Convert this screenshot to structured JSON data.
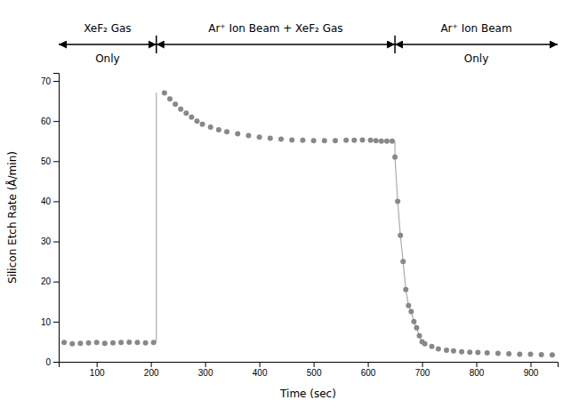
{
  "chart_data": {
    "type": "scatter",
    "xlabel": "Time (sec)",
    "ylabel": "Silicon Etch Rate (Å/min)",
    "xlim": [
      30,
      950
    ],
    "ylim": [
      0,
      72
    ],
    "xticks": [
      100,
      200,
      300,
      400,
      500,
      600,
      700,
      800,
      900
    ],
    "yticks": [
      0,
      10,
      20,
      30,
      40,
      50,
      60,
      70
    ],
    "grid": false,
    "series": [
      {
        "type": "scatter",
        "marker": "circle",
        "color": "#888888",
        "x": [
          40,
          55,
          70,
          85,
          100,
          115,
          130,
          145,
          160,
          175,
          190,
          205
        ],
        "values": [
          4.8,
          4.5,
          4.6,
          4.7,
          4.8,
          4.6,
          4.7,
          4.8,
          4.9,
          4.8,
          4.7,
          4.8
        ]
      },
      {
        "type": "line",
        "line_style": "solid",
        "color": "#aaaaaa",
        "x": [
          210,
          210
        ],
        "values": [
          4.8,
          67.0
        ]
      },
      {
        "type": "scatter",
        "marker": "circle",
        "color": "#888888",
        "x": [
          225,
          235,
          245,
          255,
          265,
          275,
          285,
          295,
          310,
          325,
          340,
          360,
          380,
          400,
          420,
          440,
          460,
          480,
          500,
          520,
          540,
          560,
          575,
          590,
          605,
          615,
          625,
          635,
          645
        ],
        "values": [
          67.0,
          65.5,
          64.2,
          63.0,
          62.0,
          61.0,
          60.0,
          59.2,
          58.5,
          57.8,
          57.3,
          56.8,
          56.4,
          56.0,
          55.7,
          55.5,
          55.3,
          55.2,
          55.1,
          55.1,
          55.1,
          55.2,
          55.2,
          55.3,
          55.2,
          55.1,
          55.0,
          55.0,
          55.0
        ]
      },
      {
        "type": "line",
        "line_style": "solid",
        "color": "#aaaaaa",
        "x": [
          650,
          650
        ],
        "values": [
          55.0,
          51.0
        ]
      },
      {
        "type": "line",
        "line_style": "solid",
        "color": "#aaaaaa",
        "x": [
          650,
          655,
          660,
          665,
          670,
          675,
          680,
          685,
          690,
          695,
          700
        ],
        "values": [
          51.0,
          40.0,
          31.5,
          25.0,
          18.0,
          14.0,
          12.5,
          10.0,
          8.5,
          6.5,
          5.0
        ]
      },
      {
        "type": "scatter",
        "marker": "circle",
        "color": "#888888",
        "x": [
          650,
          655,
          660,
          665,
          670,
          675,
          680,
          685,
          690,
          695,
          700
        ],
        "values": [
          51.0,
          40.0,
          31.5,
          25.0,
          18.0,
          14.0,
          12.5,
          10.0,
          8.5,
          6.5,
          5.0
        ]
      },
      {
        "type": "scatter",
        "marker": "circle",
        "color": "#888888",
        "x": [
          705,
          718,
          730,
          745,
          758,
          773,
          788,
          803,
          820,
          840,
          860,
          880,
          900,
          920,
          940
        ],
        "values": [
          4.5,
          3.8,
          3.2,
          2.9,
          2.7,
          2.5,
          2.4,
          2.3,
          2.2,
          2.1,
          2.0,
          1.9,
          1.9,
          1.8,
          1.7
        ]
      }
    ],
    "annotations": [
      {
        "from": 30,
        "to": 210,
        "text": [
          "XeF₂ Gas",
          "Only"
        ]
      },
      {
        "from": 210,
        "to": 650,
        "text": [
          "Ar⁺ Ion Beam + XeF₂ Gas"
        ]
      },
      {
        "from": 650,
        "to": 950,
        "text": [
          "Ar⁺ Ion Beam",
          "Only"
        ]
      }
    ]
  }
}
